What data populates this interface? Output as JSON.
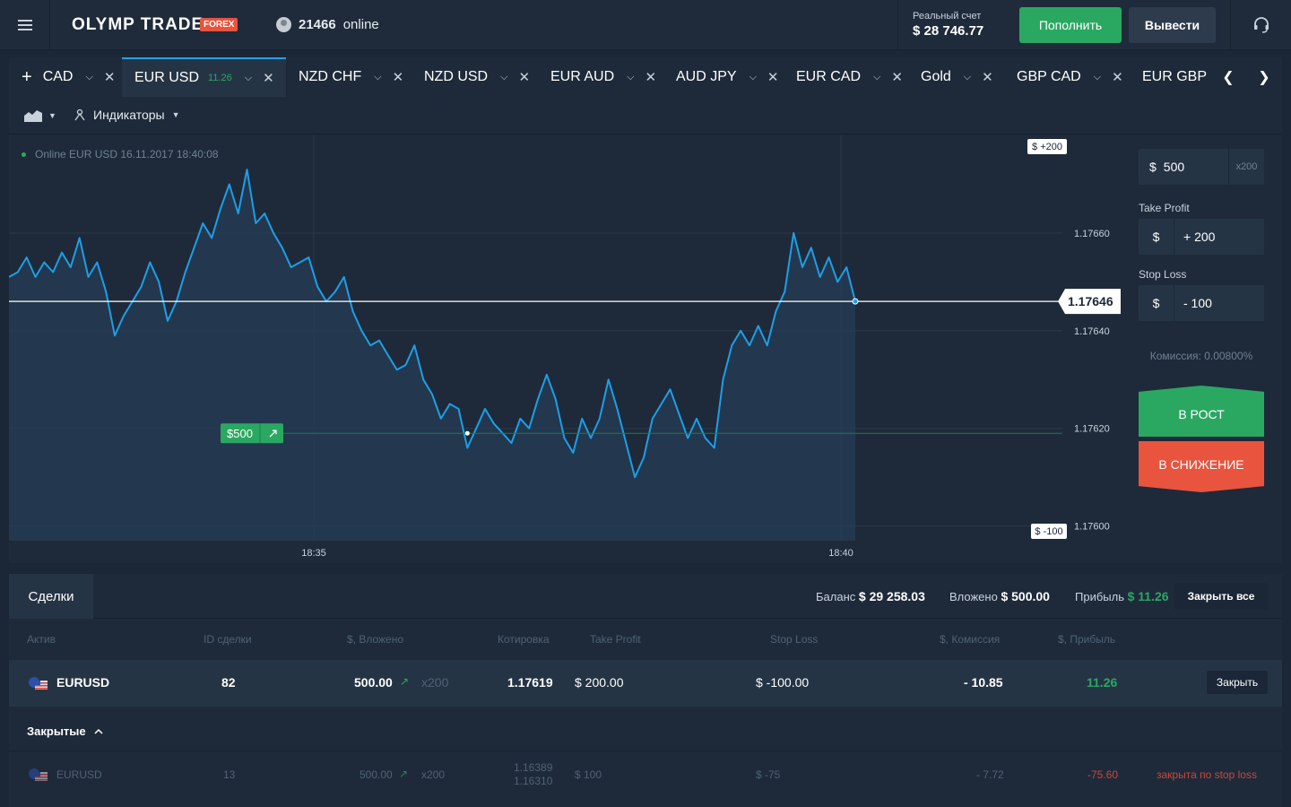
{
  "header": {
    "logo": "OLYMP TRADE",
    "logo_badge": "FOREX",
    "online_count": "21466",
    "online_label": "online",
    "account_label": "Реальный счет",
    "account_balance": "$ 28 746.77",
    "deposit_label": "Пополнить",
    "withdraw_label": "Вывести",
    "icons": [
      "menu-icon",
      "user-icon",
      "headset-icon"
    ]
  },
  "tabs": [
    {
      "label": "CAD",
      "add": "+",
      "active": false
    },
    {
      "label": "EUR USD",
      "pct": "11.26",
      "active": true
    },
    {
      "label": "NZD CHF",
      "active": false
    },
    {
      "label": "NZD USD",
      "active": false
    },
    {
      "label": "EUR AUD",
      "active": false
    },
    {
      "label": "AUD JPY",
      "active": false
    },
    {
      "label": "EUR CAD",
      "active": false
    },
    {
      "label": "Gold",
      "active": false
    },
    {
      "label": "GBP CAD",
      "active": false
    },
    {
      "label": "EUR GBP",
      "active": false
    }
  ],
  "toolbar": {
    "indicators_label": "Индикаторы"
  },
  "chart": {
    "online_label": "Online EUR USD 16.11.2017 18:40:08",
    "take_profit_tag": "$ +200",
    "stop_loss_tag": "$ -100",
    "current_price": "1.17646",
    "position_tag": "$500",
    "colors": {
      "line": "#1e9ee8",
      "up": "#2aa862",
      "down": "#e8543e"
    }
  },
  "chart_data": {
    "type": "area",
    "x_ticks": [
      "18:35",
      "18:40"
    ],
    "y_ticks": [
      "1.17660",
      "1.17640",
      "1.17620",
      "1.17600"
    ],
    "ylim": [
      1.17597,
      1.1768
    ],
    "current": 1.17646,
    "entry": 1.17619,
    "series": [
      {
        "values": [
          1.17651,
          1.17652,
          1.17655,
          1.17651,
          1.17654,
          1.17652,
          1.17656,
          1.17653,
          1.17659,
          1.17651,
          1.17654,
          1.17648,
          1.17639,
          1.17643,
          1.17646,
          1.17649,
          1.17654,
          1.1765,
          1.17642,
          1.17646,
          1.17652,
          1.17657,
          1.17662,
          1.17659,
          1.17665,
          1.1767,
          1.17664,
          1.17673,
          1.17662,
          1.17664,
          1.1766,
          1.17657,
          1.17653,
          1.17654,
          1.17655,
          1.17649,
          1.17646,
          1.17648,
          1.17651,
          1.17644,
          1.1764,
          1.17637,
          1.17638,
          1.17635,
          1.17632,
          1.17633,
          1.17637,
          1.1763,
          1.17627,
          1.17622,
          1.17625,
          1.17624,
          1.17616,
          1.1762,
          1.17624,
          1.17621,
          1.17619,
          1.17617,
          1.17622,
          1.1762,
          1.17626,
          1.17631,
          1.17626,
          1.17618,
          1.17615,
          1.17622,
          1.17618,
          1.17622,
          1.1763,
          1.17624,
          1.17617,
          1.1761,
          1.17614,
          1.17622,
          1.17625,
          1.17628,
          1.17623,
          1.17618,
          1.17622,
          1.17618,
          1.17616,
          1.1763,
          1.17637,
          1.1764,
          1.17637,
          1.17641,
          1.17637,
          1.17644,
          1.17648,
          1.1766,
          1.17653,
          1.17657,
          1.17651,
          1.17655,
          1.1765,
          1.17653,
          1.17646
        ]
      }
    ]
  },
  "order": {
    "currency": "$",
    "amount": "500",
    "multiplier": "x200",
    "take_profit_label": "Take Profit",
    "take_profit_value": "+ 200",
    "stop_loss_label": "Stop Loss",
    "stop_loss_value": "- 100",
    "commission": "Комиссия: 0.00800%",
    "up_label": "В РОСТ",
    "down_label": "В СНИЖЕНИЕ"
  },
  "deals": {
    "tab_label": "Сделки",
    "balance_label": "Баланс",
    "balance_value": "$ 29 258.03",
    "invested_label": "Вложено",
    "invested_value": "$ 500.00",
    "profit_label": "Прибыль",
    "profit_value": "$ 11.26",
    "close_all_label": "Закрыть все",
    "columns": [
      "Актив",
      "ID сделки",
      "$, Вложено",
      "Котировка",
      "Take Profit",
      "Stop Loss",
      "$, Комиссия",
      "$, Прибыль"
    ],
    "open_row": {
      "asset": "EURUSD",
      "id": "82",
      "invested": "500.00",
      "mult": "x200",
      "quote": "1.17619",
      "take_profit": "$  200.00",
      "stop_loss": "$  -100.00",
      "commission": "- 10.85",
      "profit": "11.26",
      "close_label": "Закрыть"
    },
    "closed_label": "Закрытые",
    "closed_row": {
      "asset": "EURUSD",
      "id": "13",
      "invested": "500.00",
      "mult": "x200",
      "quote_open": "1.16389",
      "quote_close": "1.16310",
      "take_profit": "$  100",
      "stop_loss": "$  -75",
      "commission": "- 7.72",
      "profit": "-75.60",
      "status": "закрыта по stop loss"
    }
  }
}
